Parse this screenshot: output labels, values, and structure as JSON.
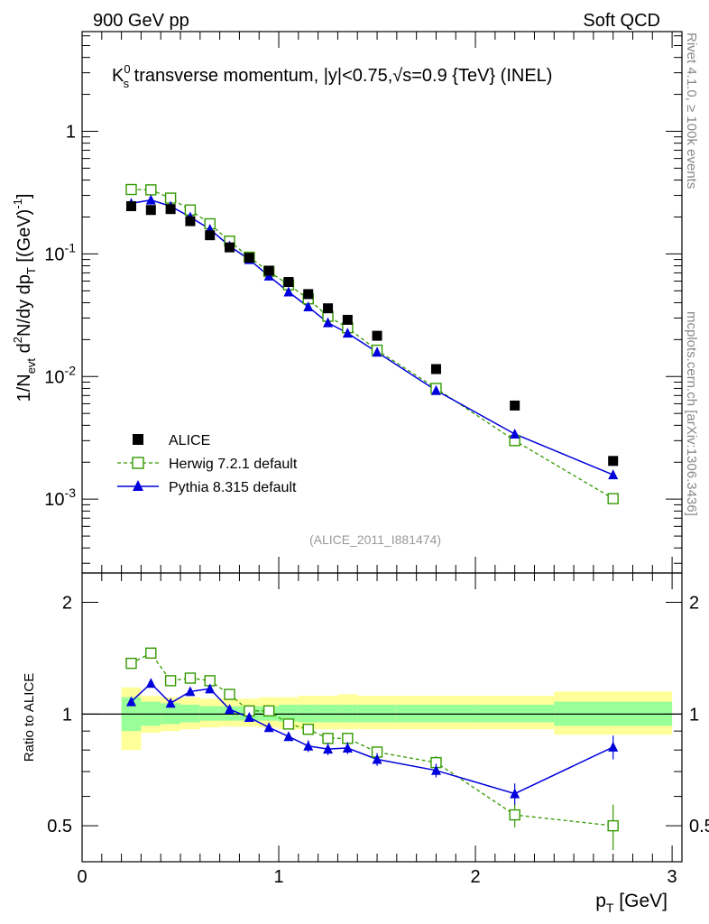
{
  "header": {
    "left": "900 GeV pp",
    "right": "Soft QCD"
  },
  "title": {
    "prefix": "K",
    "sub": "s",
    "sup": "0",
    "main": " transverse momentum, |y|<0.75,",
    "sqrt": "√s",
    "tail": "=0.9 {TeV} (INEL)"
  },
  "side_labels": {
    "rivet": "Rivet 4.1.0, ≥ 100k events",
    "mcplots": "mcplots.cern.ch [arXiv:1306.3436]"
  },
  "analysis_id": "(ALICE_2011_I881474)",
  "colors": {
    "data": "#000000",
    "herwig": "#339900",
    "pythia": "#0000dd",
    "band_inner": "#99ff99",
    "band_outer": "#ffff99"
  },
  "axis_labels": {
    "x": "p",
    "x_sub": "T",
    "x_unit": " [GeV]",
    "y_main": "1/N",
    "y_main_sub": "evt",
    "y_main_rest": " d",
    "y_main_sup": "2",
    "y_main_rest2": "N/dy dp",
    "y_main_sub2": "T",
    "y_main_unit": " [(GeV)",
    "y_main_unit_sup": "-1",
    "y_main_unit_end": "]",
    "y_ratio": "Ratio to ALICE"
  },
  "tick_labels": {
    "main_y": [
      {
        "base": "10",
        "exp": "-3"
      },
      {
        "base": "10",
        "exp": "-2"
      },
      {
        "base": "10",
        "exp": "-1"
      },
      {
        "plain": "1"
      }
    ],
    "ratio_y": [
      "0.5",
      "1",
      "2"
    ],
    "ratio_y_right": [
      "0.5",
      "1",
      "2"
    ],
    "x": [
      "0",
      "1",
      "2",
      "3"
    ]
  },
  "legend": {
    "data": "ALICE",
    "herwig": "Herwig 7.2.1 default",
    "pythia": "Pythia 8.315 default"
  },
  "chart_data": [
    {
      "type": "scatter",
      "title": "K0s transverse momentum, |y|<0.75, √s=0.9 {TeV} (INEL)",
      "xlabel": "pT [GeV]",
      "ylabel": "1/Nevt d2N/dy dpT [(GeV)-1]",
      "yscale": "log",
      "xlim": [
        0,
        3.05
      ],
      "ylim": [
        0.00025,
        6.5
      ],
      "x": [
        0.25,
        0.35,
        0.45,
        0.55,
        0.65,
        0.75,
        0.85,
        0.95,
        1.05,
        1.15,
        1.25,
        1.35,
        1.5,
        1.8,
        2.2,
        2.7
      ],
      "x_bin_edges": [
        0.2,
        0.3,
        0.4,
        0.5,
        0.6,
        0.7,
        0.8,
        0.9,
        1.0,
        1.1,
        1.2,
        1.3,
        1.4,
        1.6,
        2.0,
        2.4,
        3.0
      ],
      "series": [
        {
          "name": "ALICE",
          "style": "markers",
          "values": [
            0.245,
            0.228,
            0.232,
            0.185,
            0.142,
            0.113,
            0.093,
            0.073,
            0.059,
            0.047,
            0.036,
            0.029,
            0.0215,
            0.0115,
            0.0058,
            0.00205
          ]
        },
        {
          "name": "Herwig 7.2.1 default",
          "style": "dashed-open-squares",
          "values": [
            0.335,
            0.333,
            0.285,
            0.228,
            0.176,
            0.127,
            0.094,
            0.072,
            0.056,
            0.043,
            0.031,
            0.025,
            0.0164,
            0.008,
            0.003,
            0.00101
          ]
        },
        {
          "name": "Pythia 8.315 default",
          "style": "solid-triangles",
          "values": [
            0.258,
            0.275,
            0.245,
            0.2,
            0.159,
            0.116,
            0.09,
            0.066,
            0.049,
            0.037,
            0.0275,
            0.0226,
            0.0158,
            0.0077,
            0.0034,
            0.00158
          ]
        }
      ]
    },
    {
      "type": "scatter",
      "title": "Ratio to ALICE",
      "xlabel": "pT [GeV]",
      "ylabel": "Ratio to ALICE",
      "yscale": "log",
      "xlim": [
        0,
        3.05
      ],
      "ylim": [
        0.4,
        2.4
      ],
      "reference": 1,
      "x": [
        0.25,
        0.35,
        0.45,
        0.55,
        0.65,
        0.75,
        0.85,
        0.95,
        1.05,
        1.15,
        1.25,
        1.35,
        1.5,
        1.8,
        2.2,
        2.7
      ],
      "uncertainty_bands": {
        "x_edges": [
          0.2,
          0.3,
          0.4,
          0.5,
          0.6,
          0.7,
          0.8,
          0.9,
          1.0,
          1.1,
          1.2,
          1.3,
          1.4,
          1.6,
          2.0,
          2.4,
          3.0
        ],
        "inner": {
          "low": [
            0.9,
            0.93,
            0.94,
            0.95,
            0.96,
            0.96,
            0.96,
            0.96,
            0.955,
            0.95,
            0.95,
            0.95,
            0.95,
            0.95,
            0.95,
            0.93
          ],
          "high": [
            1.11,
            1.08,
            1.07,
            1.06,
            1.05,
            1.05,
            1.05,
            1.05,
            1.06,
            1.06,
            1.06,
            1.06,
            1.06,
            1.06,
            1.06,
            1.08
          ]
        },
        "outer": {
          "low": [
            0.8,
            0.89,
            0.9,
            0.91,
            0.92,
            0.925,
            0.925,
            0.92,
            0.91,
            0.91,
            0.91,
            0.91,
            0.91,
            0.91,
            0.91,
            0.88
          ],
          "high": [
            1.18,
            1.12,
            1.11,
            1.11,
            1.1,
            1.1,
            1.1,
            1.11,
            1.11,
            1.12,
            1.12,
            1.13,
            1.12,
            1.12,
            1.12,
            1.15
          ]
        }
      },
      "series": [
        {
          "name": "Herwig 7.2.1 default",
          "style": "dashed-open-squares",
          "values": [
            1.37,
            1.46,
            1.23,
            1.25,
            1.23,
            1.13,
            1.02,
            1.02,
            0.94,
            0.91,
            0.86,
            0.86,
            0.79,
            0.74,
            0.535,
            0.5
          ],
          "errors": [
            0.02,
            0.02,
            0.02,
            0.02,
            0.02,
            0.02,
            0.02,
            0.02,
            0.02,
            0.02,
            0.02,
            0.02,
            0.02,
            0.03,
            0.04,
            0.07
          ]
        },
        {
          "name": "Pythia 8.315 default",
          "style": "solid-triangles",
          "values": [
            1.08,
            1.21,
            1.07,
            1.15,
            1.17,
            1.03,
            0.98,
            0.92,
            0.87,
            0.82,
            0.805,
            0.81,
            0.755,
            0.705,
            0.61,
            0.815
          ],
          "errors": [
            0.02,
            0.02,
            0.02,
            0.02,
            0.02,
            0.02,
            0.02,
            0.02,
            0.02,
            0.03,
            0.03,
            0.03,
            0.03,
            0.03,
            0.04,
            0.06
          ]
        }
      ]
    }
  ]
}
